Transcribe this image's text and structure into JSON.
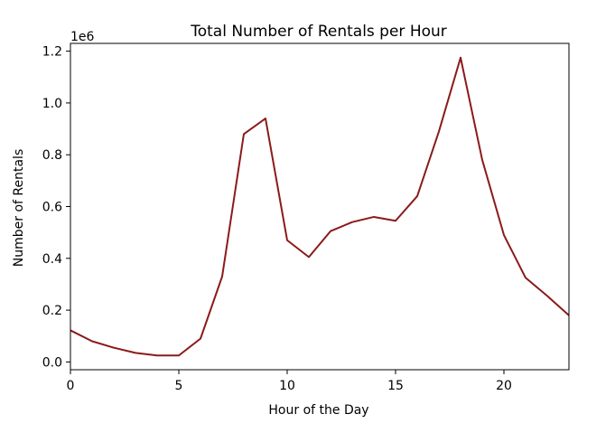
{
  "chart_data": {
    "type": "line",
    "title": "Total Number of Rentals per Hour",
    "xlabel": "Hour of the Day",
    "ylabel": "Number of Rentals",
    "y_offset_label": "1e6",
    "xlim": [
      0,
      23
    ],
    "ylim": [
      -0.03,
      1.23
    ],
    "x_ticks": [
      0,
      5,
      10,
      15,
      20
    ],
    "x_tick_labels": [
      "0",
      "5",
      "10",
      "15",
      "20"
    ],
    "y_ticks": [
      0.0,
      0.2,
      0.4,
      0.6,
      0.8,
      1.0,
      1.2
    ],
    "y_tick_labels": [
      "0.0",
      "0.2",
      "0.4",
      "0.6",
      "0.8",
      "1.0",
      "1.2"
    ],
    "grid": false,
    "series": [
      {
        "color": "#8b1a1a",
        "x": [
          0,
          1,
          2,
          3,
          4,
          5,
          6,
          7,
          8,
          9,
          10,
          11,
          12,
          13,
          14,
          15,
          16,
          17,
          18,
          19,
          20,
          21,
          22,
          23
        ],
        "y": [
          0.122,
          0.08,
          0.055,
          0.035,
          0.025,
          0.025,
          0.09,
          0.33,
          0.88,
          0.94,
          0.47,
          0.405,
          0.505,
          0.54,
          0.56,
          0.545,
          0.64,
          0.89,
          1.175,
          0.78,
          0.49,
          0.325,
          0.255,
          0.18
        ]
      }
    ]
  }
}
